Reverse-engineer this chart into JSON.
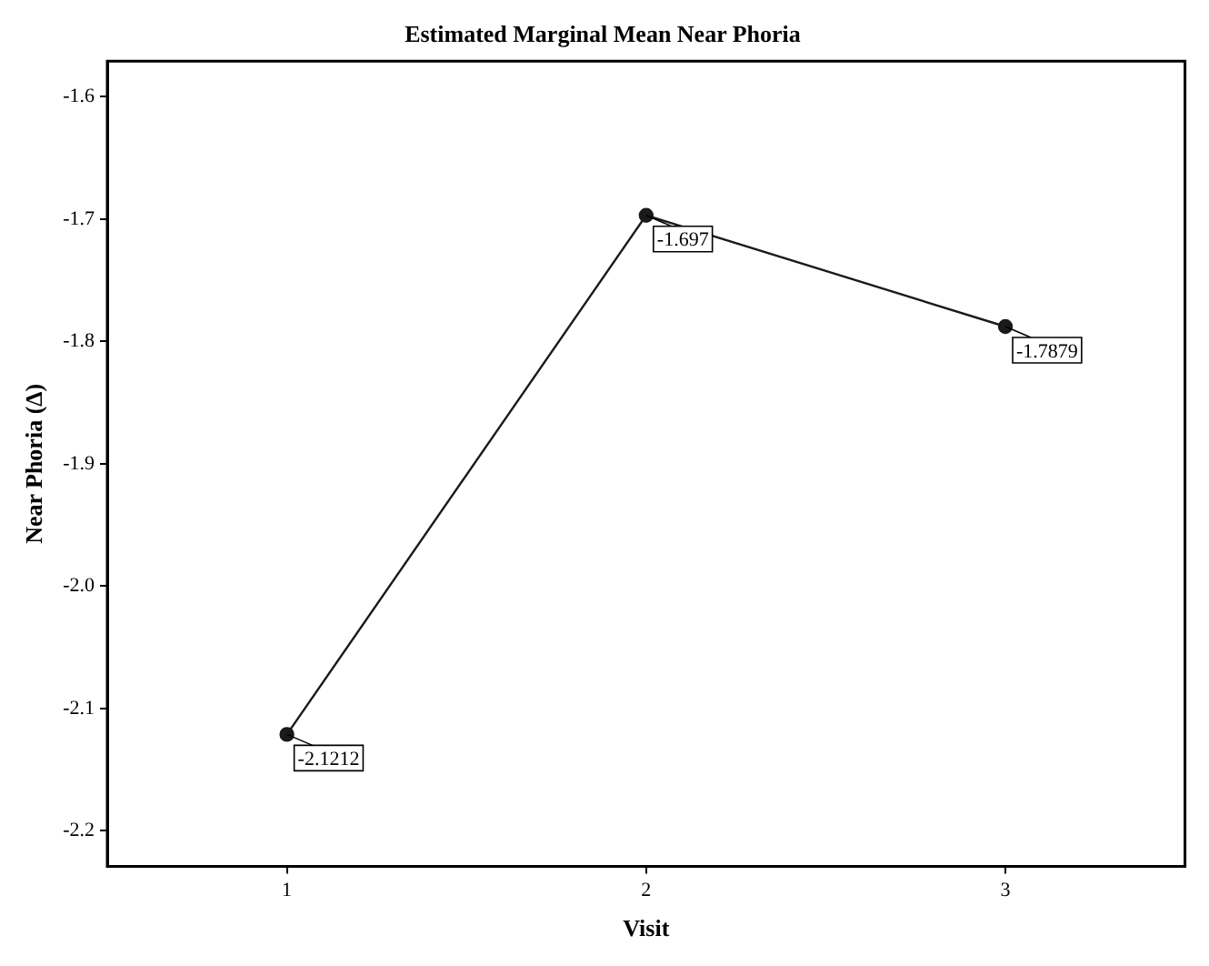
{
  "chart_data": {
    "type": "line",
    "title": "Estimated Marginal Mean Near Phoria",
    "xlabel": "Visit",
    "ylabel": "Near Phoria (Δ)",
    "categories": [
      "1",
      "2",
      "3"
    ],
    "series": [
      {
        "color": "#1a1a1a",
        "values": [
          -2.1212,
          -1.697,
          -1.7879
        ],
        "value_labels": [
          "-2.1212",
          "-1.697",
          "-1.7879"
        ]
      }
    ],
    "ylim": [
      -2.229,
      -1.571
    ],
    "yticks": [
      -2.2,
      -2.1,
      {
        "value": -2.0,
        "label": "-2.0"
      },
      -1.9,
      -1.8,
      -1.7,
      -1.6
    ],
    "grid": false,
    "legend": false,
    "marker": "circle",
    "line_style": "solid"
  }
}
